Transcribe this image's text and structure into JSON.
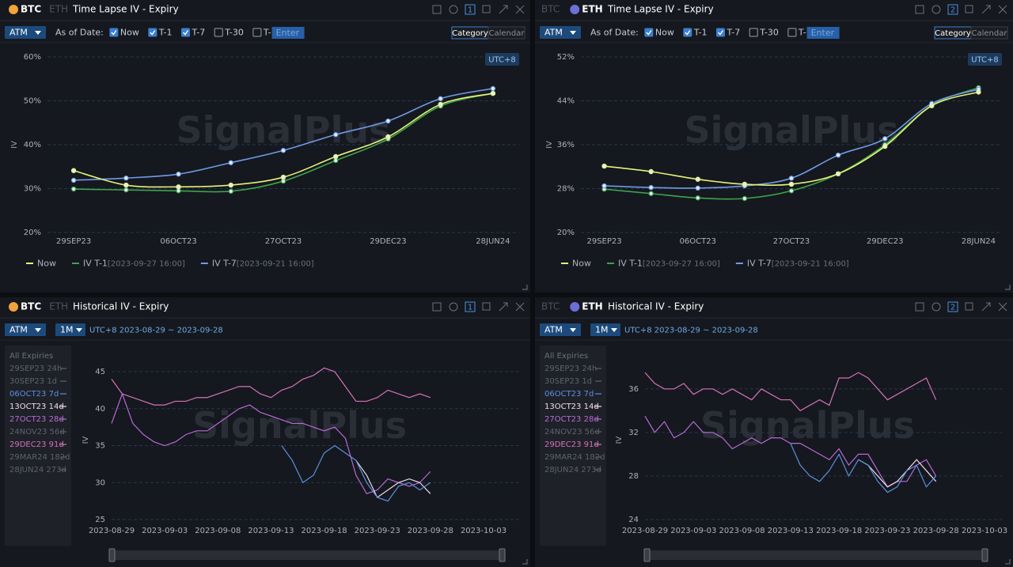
{
  "watermark": "SignalPlus",
  "panels": [
    {
      "header": {
        "coins": [
          "BTC",
          "ETH"
        ],
        "active_coin": 0,
        "title": "Time Lapse IV - Expiry",
        "number": "1"
      },
      "toolbar": {
        "mode": "ATM",
        "as_of_label": "As of Date:",
        "options": [
          {
            "label": "Now",
            "checked": true
          },
          {
            "label": "T-1",
            "checked": true
          },
          {
            "label": "T-7",
            "checked": true
          },
          {
            "label": "T-30",
            "checked": false
          },
          {
            "label": "T-",
            "checked": false
          }
        ],
        "input_placeholder": "Enter",
        "views": [
          "Category",
          "Calendar"
        ],
        "active_view": 0
      }
    },
    {
      "header": {
        "coins": [
          "BTC",
          "ETH"
        ],
        "active_coin": 1,
        "title": "Time Lapse IV - Expiry",
        "number": "2"
      },
      "toolbar": {
        "mode": "ATM",
        "as_of_label": "As of Date:",
        "options": [
          {
            "label": "Now",
            "checked": true
          },
          {
            "label": "T-1",
            "checked": true
          },
          {
            "label": "T-7",
            "checked": true
          },
          {
            "label": "T-30",
            "checked": false
          },
          {
            "label": "T-",
            "checked": false
          }
        ],
        "input_placeholder": "Enter",
        "views": [
          "Category",
          "Calendar"
        ],
        "active_view": 0
      }
    },
    {
      "header": {
        "coins": [
          "BTC",
          "ETH"
        ],
        "active_coin": 0,
        "title": "Historical IV - Expiry",
        "number": "1"
      },
      "toolbar": {
        "mode": "ATM",
        "period": "1M",
        "range": "UTC+8 2023-08-29 ~ 2023-09-28"
      }
    },
    {
      "header": {
        "coins": [
          "BTC",
          "ETH"
        ],
        "active_coin": 1,
        "title": "Historical IV - Expiry",
        "number": "2"
      },
      "toolbar": {
        "mode": "ATM",
        "period": "1M",
        "range": "UTC+8 2023-08-29 ~ 2023-09-28"
      }
    }
  ],
  "chart_data": [
    {
      "type": "category_line",
      "ylabel": "IV",
      "timezone": "UTC+8",
      "grid": true,
      "categories": [
        "29SEP23",
        null,
        "06OCT23",
        null,
        "27OCT23",
        null,
        "29DEC23",
        null,
        "28JUN24"
      ],
      "ylim": [
        20,
        60
      ],
      "yticks": [
        {
          "value": 20,
          "label": "20%"
        },
        {
          "value": 30,
          "label": "30%"
        },
        {
          "value": 40,
          "label": "40%"
        },
        {
          "value": 50,
          "label": "50%"
        },
        {
          "value": 60,
          "label": "60%"
        }
      ],
      "series": [
        {
          "name": "Now",
          "color": "#e6f27a",
          "values": [
            34.1,
            30.8,
            30.4,
            30.8,
            32.6,
            37.3,
            41.8,
            49.2,
            51.7
          ]
        },
        {
          "name": "IV T-1",
          "as_of": "[2023-09-27 16:00]",
          "color": "#3fa34d",
          "values": [
            29.9,
            29.7,
            29.5,
            29.4,
            31.7,
            36.4,
            41.3,
            48.8,
            51.7
          ]
        },
        {
          "name": "IV T-7",
          "as_of": "[2023-09-21 16:00]",
          "color": "#6f9be8",
          "values": [
            31.9,
            32.4,
            33.3,
            35.9,
            38.7,
            42.3,
            45.4,
            50.5,
            52.8
          ]
        }
      ]
    },
    {
      "type": "category_line",
      "ylabel": "IV",
      "timezone": "UTC+8",
      "grid": true,
      "categories": [
        "29SEP23",
        null,
        "06OCT23",
        null,
        "27OCT23",
        null,
        "29DEC23",
        null,
        "28JUN24"
      ],
      "ylim": [
        20,
        52
      ],
      "yticks": [
        {
          "value": 20,
          "label": "20%"
        },
        {
          "value": 28,
          "label": "28%"
        },
        {
          "value": 36,
          "label": "36%"
        },
        {
          "value": 44,
          "label": "44%"
        },
        {
          "value": 52,
          "label": "52%"
        }
      ],
      "series": [
        {
          "name": "Now",
          "color": "#e6f27a",
          "values": [
            32.1,
            31.1,
            29.7,
            28.8,
            28.8,
            30.7,
            35.7,
            43.1,
            45.6
          ]
        },
        {
          "name": "IV T-1",
          "as_of": "[2023-09-27 16:00]",
          "color": "#3fa34d",
          "values": [
            27.9,
            27.1,
            26.3,
            26.2,
            27.6,
            30.7,
            36.0,
            43.2,
            46.4
          ]
        },
        {
          "name": "IV T-7",
          "as_of": "[2023-09-21 16:00]",
          "color": "#6f9be8",
          "values": [
            28.5,
            28.2,
            28.1,
            28.5,
            29.9,
            34.1,
            37.1,
            43.5,
            46.1
          ]
        }
      ]
    },
    {
      "type": "time_line",
      "ylabel": "IV",
      "grid": true,
      "list_header": "All Expiries",
      "x": [
        "2023-08-29",
        "2023-08-30",
        "2023-08-31",
        "2023-09-01",
        "2023-09-02",
        "2023-09-03",
        "2023-09-04",
        "2023-09-05",
        "2023-09-06",
        "2023-09-07",
        "2023-09-08",
        "2023-09-09",
        "2023-09-10",
        "2023-09-11",
        "2023-09-12",
        "2023-09-13",
        "2023-09-14",
        "2023-09-15",
        "2023-09-16",
        "2023-09-17",
        "2023-09-18",
        "2023-09-19",
        "2023-09-20",
        "2023-09-21",
        "2023-09-22",
        "2023-09-23",
        "2023-09-24",
        "2023-09-25",
        "2023-09-26",
        "2023-09-27",
        "2023-09-28"
      ],
      "xlim": [
        "2023-08-29",
        "2023-10-03"
      ],
      "xticks": [
        "2023-08-29",
        "2023-09-03",
        "2023-09-08",
        "2023-09-13",
        "2023-09-18",
        "2023-09-23",
        "2023-09-28",
        "2023-10-03"
      ],
      "ylim": [
        25,
        46.5
      ],
      "yticks": [
        25,
        30,
        35,
        40,
        45
      ],
      "series": [
        {
          "name": "29SEP23 24h",
          "visible": false
        },
        {
          "name": "30SEP23 1d",
          "visible": false
        },
        {
          "name": "06OCT23 7d",
          "visible": true,
          "color": "#5b8fe0",
          "values": [
            null,
            null,
            null,
            null,
            null,
            null,
            null,
            null,
            null,
            null,
            null,
            null,
            null,
            null,
            null,
            null,
            35,
            33,
            30,
            31,
            34,
            35,
            34,
            33,
            30,
            28,
            27.5,
            29.5,
            30,
            29,
            30
          ]
        },
        {
          "name": "13OCT23 14d",
          "visible": true,
          "color": "#f2dcea",
          "values": [
            null,
            null,
            null,
            null,
            null,
            null,
            null,
            null,
            null,
            null,
            null,
            null,
            null,
            null,
            null,
            null,
            null,
            null,
            null,
            null,
            null,
            null,
            null,
            33,
            31,
            28,
            29,
            30,
            30.5,
            30,
            28.5
          ]
        },
        {
          "name": "27OCT23 28d",
          "visible": true,
          "color": "#b86ad6",
          "values": [
            38,
            42,
            38,
            36.5,
            35.5,
            35,
            35.5,
            36.5,
            37,
            37,
            38,
            39,
            40,
            40.5,
            39.5,
            39,
            38.5,
            38,
            38,
            37.5,
            37,
            37.5,
            36,
            31,
            28.5,
            29,
            30.5,
            30,
            29.5,
            30,
            31.5
          ]
        },
        {
          "name": "24NOV23 56d",
          "visible": false
        },
        {
          "name": "29DEC23 91d",
          "visible": true,
          "color": "#d472b8",
          "values": [
            44,
            42,
            41.5,
            41,
            40.5,
            40.5,
            41,
            41,
            41.5,
            41.5,
            42,
            42.5,
            43,
            43,
            42,
            41.5,
            42.5,
            43,
            44,
            44.5,
            45.5,
            45,
            43,
            41,
            41,
            41.5,
            42.5,
            42,
            41.5,
            42,
            41.5
          ]
        },
        {
          "name": "29MAR24 182d",
          "visible": false
        },
        {
          "name": "28JUN24 273d",
          "visible": false
        }
      ]
    },
    {
      "type": "time_line",
      "ylabel": "IV",
      "grid": true,
      "list_header": "All Expiries",
      "x": [
        "2023-08-29",
        "2023-08-30",
        "2023-08-31",
        "2023-09-01",
        "2023-09-02",
        "2023-09-03",
        "2023-09-04",
        "2023-09-05",
        "2023-09-06",
        "2023-09-07",
        "2023-09-08",
        "2023-09-09",
        "2023-09-10",
        "2023-09-11",
        "2023-09-12",
        "2023-09-13",
        "2023-09-14",
        "2023-09-15",
        "2023-09-16",
        "2023-09-17",
        "2023-09-18",
        "2023-09-19",
        "2023-09-20",
        "2023-09-21",
        "2023-09-22",
        "2023-09-23",
        "2023-09-24",
        "2023-09-25",
        "2023-09-26",
        "2023-09-27",
        "2023-09-28"
      ],
      "xlim": [
        "2023-08-29",
        "2023-10-03"
      ],
      "xticks": [
        "2023-08-29",
        "2023-09-03",
        "2023-09-08",
        "2023-09-13",
        "2023-09-18",
        "2023-09-23",
        "2023-09-28",
        "2023-10-03"
      ],
      "ylim": [
        24,
        38.6
      ],
      "yticks": [
        24,
        28,
        32,
        36
      ],
      "series": [
        {
          "name": "29SEP23 24h",
          "visible": false
        },
        {
          "name": "30SEP23 1d",
          "visible": false
        },
        {
          "name": "06OCT23 7d",
          "visible": true,
          "color": "#5b8fe0",
          "values": [
            null,
            null,
            null,
            null,
            null,
            null,
            null,
            null,
            null,
            null,
            null,
            null,
            null,
            null,
            null,
            31,
            29,
            28,
            27.5,
            28.5,
            30,
            28,
            29.5,
            29,
            27.5,
            26.5,
            27,
            28.5,
            29,
            27,
            28
          ]
        },
        {
          "name": "13OCT23 14d",
          "visible": true,
          "color": "#f2dcea",
          "values": [
            null,
            null,
            null,
            null,
            null,
            null,
            null,
            null,
            null,
            null,
            null,
            null,
            null,
            null,
            null,
            null,
            null,
            null,
            null,
            null,
            null,
            null,
            29.5,
            29,
            28,
            27,
            27.5,
            28.5,
            29.5,
            28.5,
            27.5
          ]
        },
        {
          "name": "27OCT23 28d",
          "visible": true,
          "color": "#b86ad6",
          "values": [
            33.5,
            32,
            33,
            31.5,
            32,
            33,
            32,
            32,
            31.5,
            30.5,
            31,
            31.5,
            31,
            31.5,
            31.5,
            31,
            31,
            30.5,
            30,
            29.5,
            30.5,
            29,
            30,
            30,
            28.5,
            27,
            27.5,
            27.5,
            29,
            29.5,
            28
          ]
        },
        {
          "name": "24NOV23 56d",
          "visible": false
        },
        {
          "name": "29DEC23 91d",
          "visible": true,
          "color": "#d472b8",
          "values": [
            37.5,
            36.5,
            36,
            36,
            36.5,
            35.5,
            36,
            36,
            35.5,
            36,
            35.5,
            35,
            36,
            35.5,
            35,
            35,
            34,
            34.5,
            35,
            34.5,
            37,
            37,
            37.5,
            37,
            36,
            35,
            35.5,
            36,
            36.5,
            37,
            35
          ]
        },
        {
          "name": "29MAR24 182d",
          "visible": false
        },
        {
          "name": "28JUN24 273d",
          "visible": false
        }
      ]
    }
  ]
}
